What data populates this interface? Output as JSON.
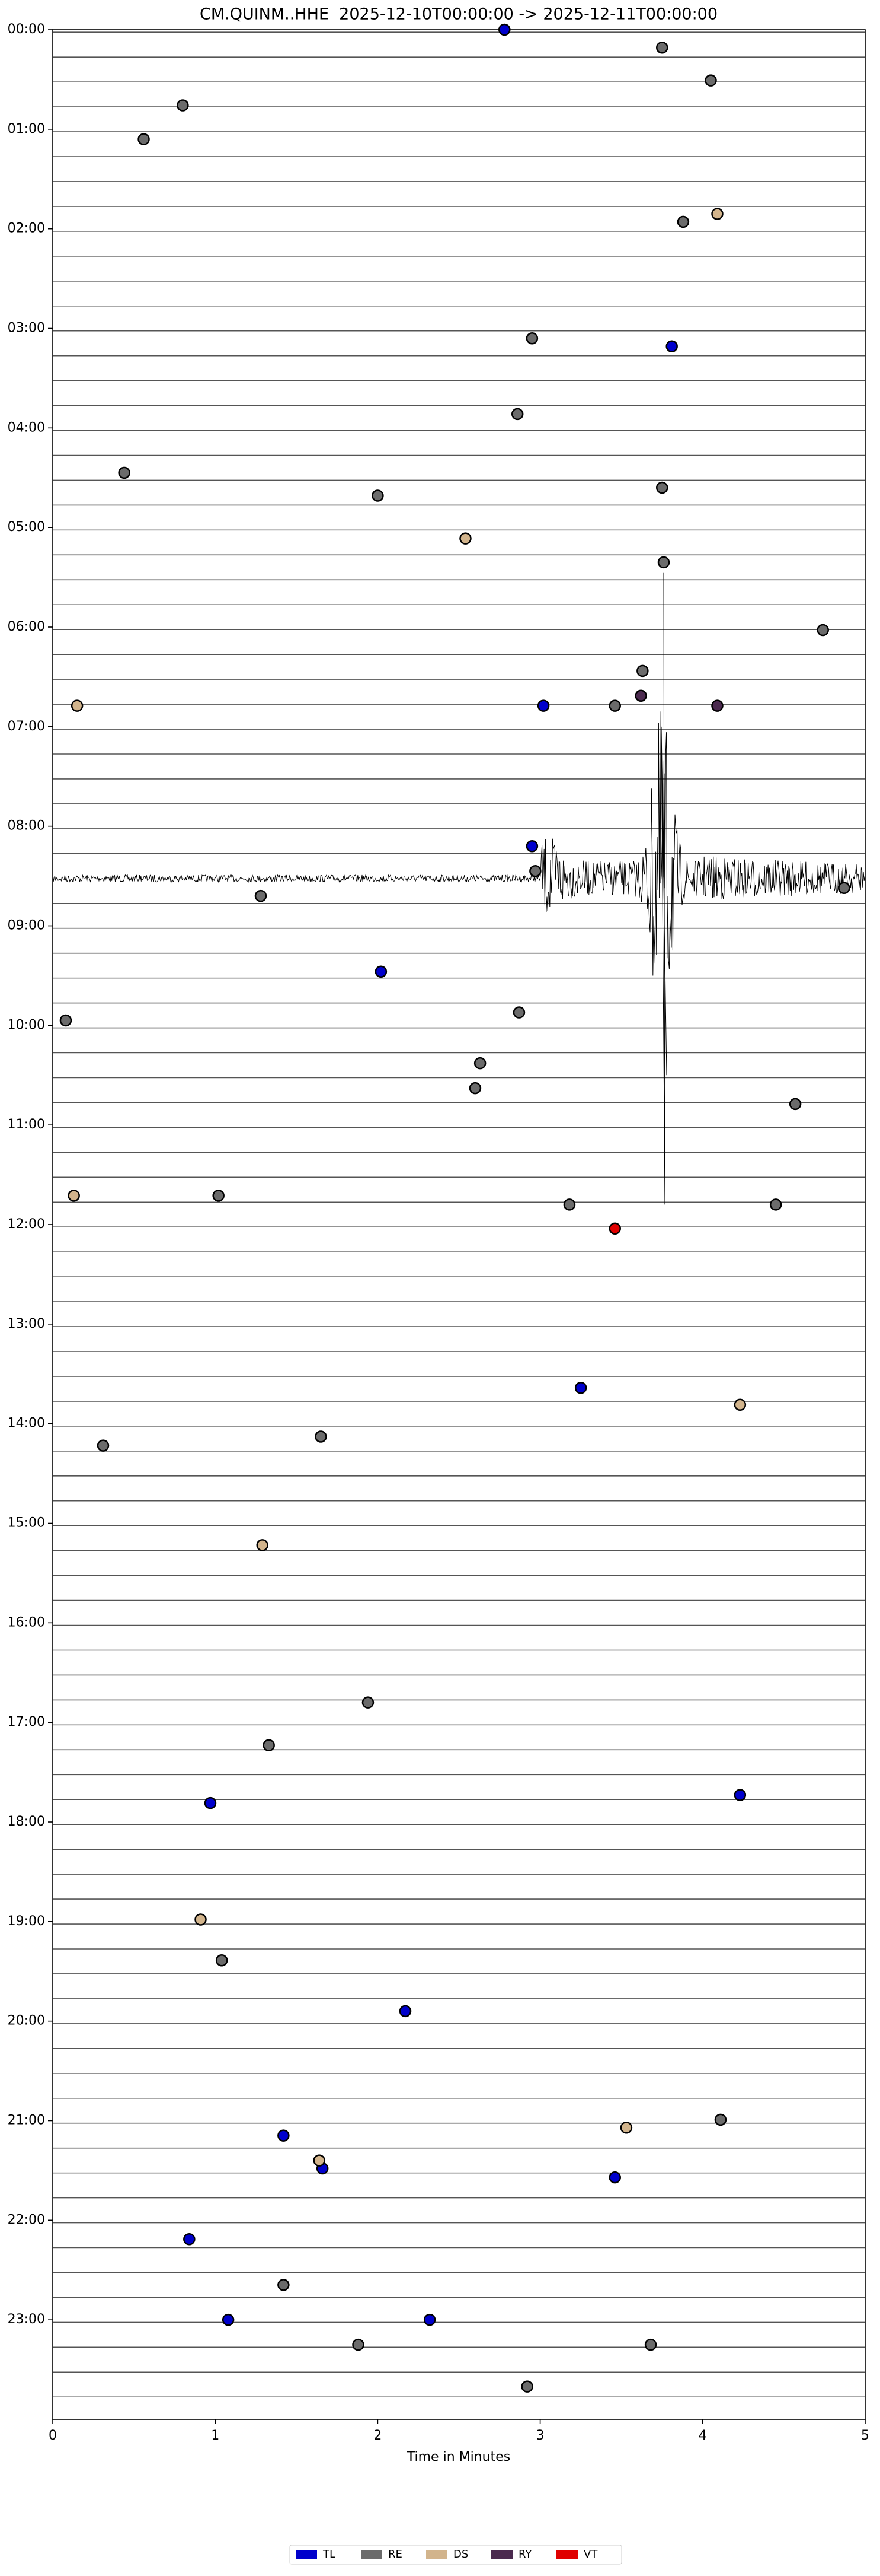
{
  "chart_data": {
    "type": "scatter",
    "title": "CM.QUINM..HHE  2025-12-10T00:00:00 -> 2025-12-11T00:00:00",
    "x_label": "Time in Minutes",
    "xlim": [
      0,
      5
    ],
    "xticks": [
      0,
      1,
      2,
      3,
      4,
      5
    ],
    "ylim": [
      0,
      24
    ],
    "y_inverted": true,
    "yticks": [
      {
        "value": 0,
        "label": "00:00"
      },
      {
        "value": 1,
        "label": "01:00"
      },
      {
        "value": 2,
        "label": "02:00"
      },
      {
        "value": 3,
        "label": "03:00"
      },
      {
        "value": 4,
        "label": "04:00"
      },
      {
        "value": 5,
        "label": "05:00"
      },
      {
        "value": 6,
        "label": "06:00"
      },
      {
        "value": 7,
        "label": "07:00"
      },
      {
        "value": 8,
        "label": "08:00"
      },
      {
        "value": 9,
        "label": "09:00"
      },
      {
        "value": 10,
        "label": "10:00"
      },
      {
        "value": 11,
        "label": "11:00"
      },
      {
        "value": 12,
        "label": "12:00"
      },
      {
        "value": 13,
        "label": "13:00"
      },
      {
        "value": 14,
        "label": "14:00"
      },
      {
        "value": 15,
        "label": "15:00"
      },
      {
        "value": 16,
        "label": "16:00"
      },
      {
        "value": 17,
        "label": "17:00"
      },
      {
        "value": 18,
        "label": "18:00"
      },
      {
        "value": 19,
        "label": "19:00"
      },
      {
        "value": 20,
        "label": "20:00"
      },
      {
        "value": 21,
        "label": "21:00"
      },
      {
        "value": 22,
        "label": "22:00"
      },
      {
        "value": 23,
        "label": "23:00"
      }
    ],
    "legend": "bottom",
    "series": [
      {
        "name": "TL",
        "color": "#0000cc",
        "x": [
          2.78,
          3.81,
          3.02,
          2.95,
          2.02,
          3.25,
          4.23,
          0.97,
          2.17,
          1.42,
          1.66,
          3.46,
          0.84,
          1.08,
          2.32
        ],
        "values": [
          0,
          3.18,
          6.79,
          8.2,
          9.46,
          13.64,
          17.73,
          17.81,
          19.9,
          21.15,
          21.48,
          21.57,
          22.19,
          23,
          23
        ]
      },
      {
        "name": "RE",
        "color": "#6b6b6b",
        "x": [
          3.75,
          4.05,
          0.8,
          0.56,
          3.88,
          2.95,
          2.86,
          0.44,
          3.75,
          2,
          3.76,
          4.74,
          3.63,
          3.46,
          2.97,
          4.87,
          1.28,
          0.08,
          2.87,
          2.63,
          2.6,
          4.57,
          1.02,
          3.18,
          4.45,
          0.31,
          1.65,
          1.94,
          1.33,
          1.04,
          4.11,
          1.42,
          1.88,
          3.68,
          2.92
        ],
        "values": [
          0.18,
          0.51,
          0.76,
          1.1,
          1.93,
          3.1,
          3.86,
          4.45,
          4.6,
          4.68,
          5.35,
          6.03,
          6.44,
          6.79,
          8.45,
          8.62,
          8.7,
          9.95,
          9.87,
          10.38,
          10.63,
          10.79,
          11.71,
          11.8,
          11.8,
          14.22,
          14.13,
          16.8,
          17.23,
          19.39,
          20.99,
          22.65,
          23.25,
          23.25,
          23.67
        ]
      },
      {
        "name": "DS",
        "color": "#d2b48c",
        "x": [
          4.09,
          2.54,
          0.15,
          0.13,
          4.23,
          1.29,
          0.91,
          3.53,
          1.64
        ],
        "values": [
          1.85,
          5.11,
          6.79,
          11.71,
          13.81,
          15.22,
          18.98,
          21.07,
          21.4
        ]
      },
      {
        "name": "RY",
        "color": "#4b2a4f",
        "x": [
          3.62,
          4.09
        ],
        "values": [
          6.69,
          6.79
        ]
      },
      {
        "name": "VT",
        "color": "#e00000",
        "x": [
          3.46
        ],
        "values": [
          12.04
        ]
      }
    ]
  }
}
